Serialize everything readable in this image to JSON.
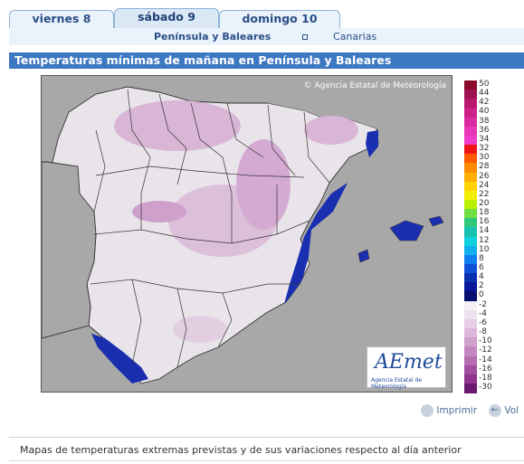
{
  "tabs": [
    {
      "label": "viernes 8",
      "active": false
    },
    {
      "label": "sábado 9",
      "active": true
    },
    {
      "label": "domingo 10",
      "active": false
    }
  ],
  "regions": {
    "selected": "Península y Baleares",
    "other": "Canarias"
  },
  "map": {
    "title": "Temperaturas mínimas de mañana en Península y Baleares",
    "credit": "Agencia Estatal de Meteorología",
    "copyright_symbol": "©",
    "logo_text": "AEmet",
    "logo_subtitle": "Agencia Estatal de Meteorología"
  },
  "legend": {
    "labels": [
      "50",
      "44",
      "42",
      "40",
      "38",
      "36",
      "34",
      "32",
      "30",
      "28",
      "26",
      "24",
      "22",
      "20",
      "18",
      "16",
      "14",
      "12",
      "10",
      "8",
      "6",
      "4",
      "2",
      "0",
      "-2",
      "-4",
      "-6",
      "-8",
      "-10",
      "-12",
      "-14",
      "-16",
      "-18",
      "-30"
    ],
    "colors": [
      "#8b0a2b",
      "#a0104f",
      "#b8176e",
      "#cc1f87",
      "#dc2aa0",
      "#e837b6",
      "#f03cc8",
      "#f01515",
      "#ff5a00",
      "#ff8c00",
      "#ffb000",
      "#ffd200",
      "#f2f000",
      "#b8f000",
      "#70e040",
      "#30c878",
      "#18c0b0",
      "#10d0e0",
      "#10b0f0",
      "#1080f0",
      "#1050d8",
      "#0830b0",
      "#081898",
      "#071070",
      "#f4f0f4",
      "#efe0ee",
      "#e6cfe4",
      "#dcb7d9",
      "#d19fcd",
      "#c486c0",
      "#b56cb1",
      "#a24f9f",
      "#8f358e",
      "#6a1a6e"
    ]
  },
  "actions": {
    "print_label": "Imprimir",
    "back_label": "Vol"
  },
  "footer": {
    "text": "Mapas de temperaturas extremas previstas y de sus variaciones respecto al día anterior"
  }
}
